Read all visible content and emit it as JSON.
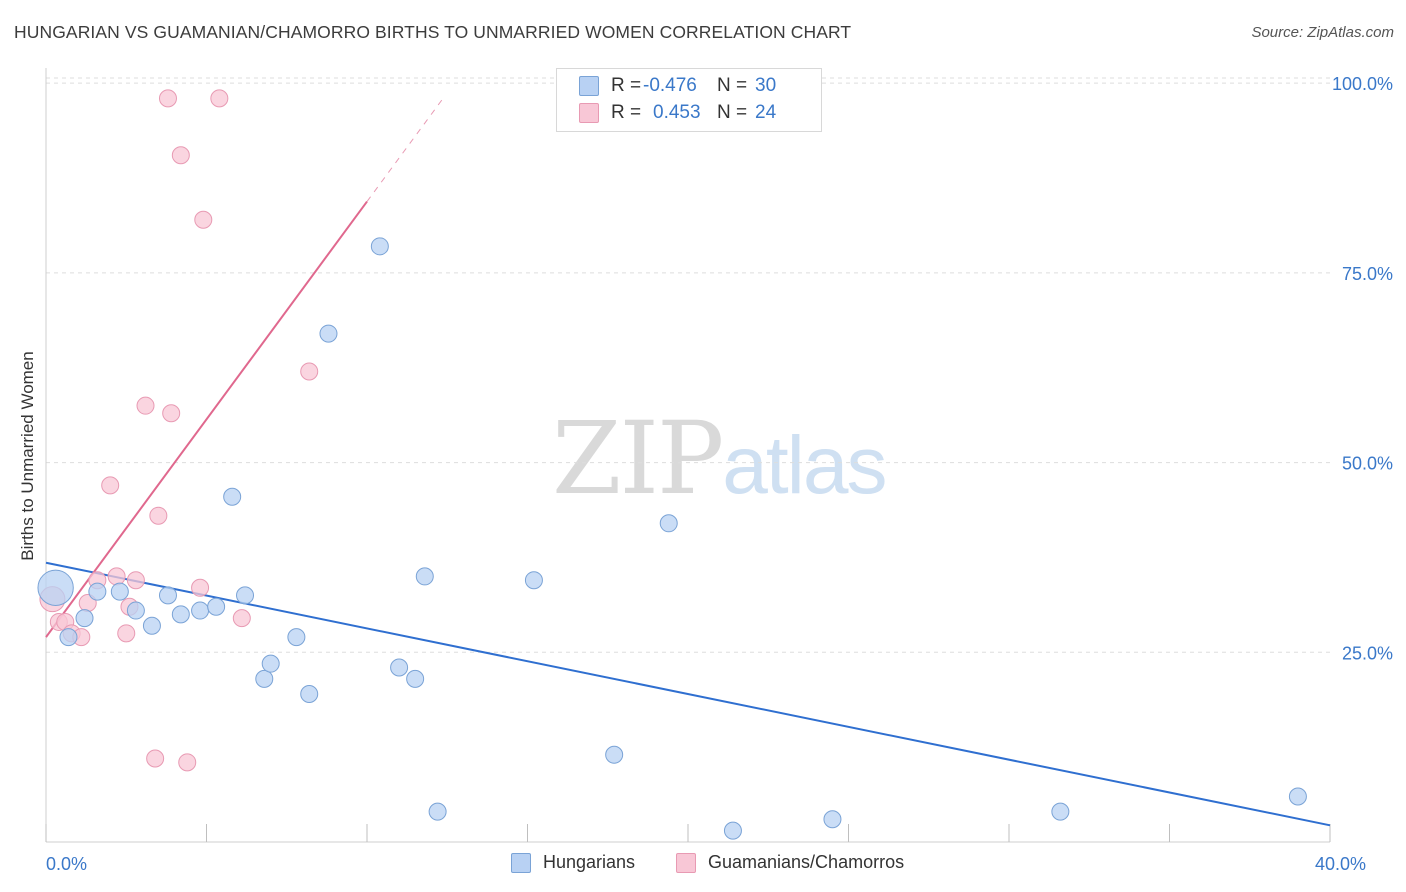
{
  "title": "HUNGARIAN VS GUAMANIAN/CHAMORRO BIRTHS TO UNMARRIED WOMEN CORRELATION CHART",
  "source": "Source: ZipAtlas.com",
  "watermark": {
    "zip": "ZIP",
    "atlas": "atlas"
  },
  "legend": {
    "hungarians": {
      "r_label": "R =",
      "r_value": "-0.476",
      "n_label": "N =",
      "n_value": "30"
    },
    "guamanians": {
      "r_label": "R =",
      "r_value": "0.453",
      "n_label": "N =",
      "n_value": "24"
    }
  },
  "bottom_legend": {
    "hungarians": "Hungarians",
    "guamanians": "Guamanians/Chamorros"
  },
  "colors": {
    "blue_fill": "#b8d1f3",
    "blue_stroke": "#7aa3d6",
    "blue_line": "#2f6fd0",
    "pink_fill": "#f8c7d6",
    "pink_stroke": "#e89ab3",
    "pink_line": "#e0688e",
    "tick_label": "#3a78c9",
    "grid": "#dddddd"
  },
  "chart_data": {
    "type": "scatter",
    "title": "HUNGARIAN VS GUAMANIAN/CHAMORRO BIRTHS TO UNMARRIED WOMEN CORRELATION CHART",
    "xlabel": "",
    "ylabel": "Births to Unmarried Women",
    "xlim": [
      0,
      40
    ],
    "ylim": [
      0,
      102
    ],
    "x_tick_labels": [
      {
        "value": 0,
        "label": "0.0%"
      },
      {
        "value": 40,
        "label": "40.0%"
      }
    ],
    "y_tick_labels": [
      {
        "value": 25,
        "label": "25.0%"
      },
      {
        "value": 50,
        "label": "50.0%"
      },
      {
        "value": 75,
        "label": "75.0%"
      },
      {
        "value": 100,
        "label": "100.0%"
      }
    ],
    "series": [
      {
        "name": "Hungarians",
        "points": [
          [
            0.3,
            33.5,
            3
          ],
          [
            0.7,
            27.0,
            1
          ],
          [
            1.2,
            29.5,
            1
          ],
          [
            1.6,
            33.0,
            1
          ],
          [
            2.3,
            33.0,
            1
          ],
          [
            2.8,
            30.5,
            1
          ],
          [
            3.3,
            28.5,
            1
          ],
          [
            3.8,
            32.5,
            1
          ],
          [
            4.2,
            30.0,
            1
          ],
          [
            4.8,
            30.5,
            1
          ],
          [
            5.3,
            31.0,
            1
          ],
          [
            5.8,
            45.5,
            1
          ],
          [
            6.2,
            32.5,
            1
          ],
          [
            6.8,
            21.5,
            1
          ],
          [
            7.0,
            23.5,
            1
          ],
          [
            7.8,
            27.0,
            1
          ],
          [
            8.2,
            19.5,
            1
          ],
          [
            8.8,
            67.0,
            1
          ],
          [
            10.4,
            78.5,
            1
          ],
          [
            11.0,
            23.0,
            1
          ],
          [
            11.5,
            21.5,
            1
          ],
          [
            11.8,
            35.0,
            1
          ],
          [
            12.2,
            4.0,
            1
          ],
          [
            15.2,
            34.5,
            1
          ],
          [
            17.7,
            11.5,
            1
          ],
          [
            19.4,
            42.0,
            1
          ],
          [
            21.4,
            1.5,
            1
          ],
          [
            24.5,
            3.0,
            1
          ],
          [
            31.6,
            4.0,
            1
          ],
          [
            39.0,
            6.0,
            1
          ]
        ]
      },
      {
        "name": "Guamanians/Chamorros",
        "points": [
          [
            0.2,
            32.0,
            1.5
          ],
          [
            0.4,
            29.0,
            1
          ],
          [
            0.6,
            29.0,
            1
          ],
          [
            0.8,
            27.5,
            1
          ],
          [
            1.1,
            27.0,
            1
          ],
          [
            1.3,
            31.5,
            1
          ],
          [
            1.6,
            34.5,
            1
          ],
          [
            2.0,
            47.0,
            1
          ],
          [
            2.2,
            35.0,
            1
          ],
          [
            2.5,
            27.5,
            1
          ],
          [
            2.6,
            31.0,
            1
          ],
          [
            2.8,
            34.5,
            1
          ],
          [
            3.1,
            57.5,
            1
          ],
          [
            3.4,
            11.0,
            1
          ],
          [
            3.5,
            43.0,
            1
          ],
          [
            3.8,
            98.0,
            1
          ],
          [
            3.9,
            56.5,
            1
          ],
          [
            4.2,
            90.5,
            1
          ],
          [
            4.4,
            10.5,
            1
          ],
          [
            4.8,
            33.5,
            1
          ],
          [
            4.9,
            82.0,
            1
          ],
          [
            5.4,
            98.0,
            1
          ],
          [
            6.1,
            29.5,
            1
          ],
          [
            8.2,
            62.0,
            1
          ]
        ]
      }
    ],
    "trend_lines": [
      {
        "series": "Hungarians",
        "x": [
          0,
          40
        ],
        "y": [
          36.8,
          2.2
        ]
      },
      {
        "series": "Guamanians/Chamorros",
        "x": [
          0,
          10.0
        ],
        "y": [
          27.0,
          84.4
        ],
        "dashed_extension_to_x": 12.4
      }
    ]
  }
}
